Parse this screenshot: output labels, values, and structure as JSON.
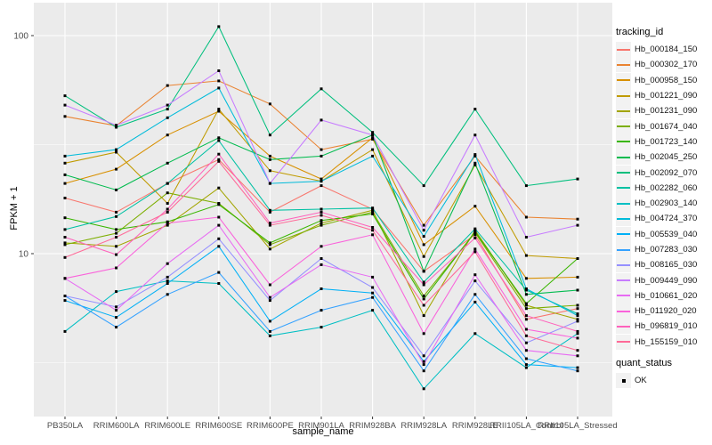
{
  "chart_data": {
    "type": "line",
    "title": "",
    "xlabel": "sample_name",
    "ylabel": "FPKM + 1",
    "y_scale": "log10",
    "y_range_approx": [
      1.8,
      140
    ],
    "y_ticks": [
      {
        "value": 100,
        "label": "100"
      },
      {
        "value": 10,
        "label": "10"
      }
    ],
    "grid": {
      "panel_bg": "#EBEBEB",
      "gridline_color": "#FFFFFF",
      "minor_breaks": [
        3.1623,
        31.623
      ]
    },
    "point_marker": {
      "shape": "square",
      "color": "#000000"
    },
    "categories": [
      "PB350LA",
      "RRIM600LA",
      "RRIM600LE",
      "RRIM600SE",
      "RRIM600PE",
      "RRIM901LA",
      "RRIM928BA",
      "RRIM928LA",
      "RRIM928LE",
      "RRII105LA_Control",
      "RRII105LA_Stressed"
    ],
    "series": [
      {
        "name": "Hb_000184_150",
        "color": "#F8766D",
        "values": [
          18,
          15.5,
          21,
          27,
          15.5,
          20.5,
          16,
          8.3,
          12.2,
          5.0,
          5.6
        ]
      },
      {
        "name": "Hb_000302_170",
        "color": "#EA8331",
        "values": [
          42.6,
          38.6,
          59,
          62,
          48.6,
          30,
          33.5,
          13.5,
          28,
          14.7,
          14.4
        ]
      },
      {
        "name": "Hb_000958_150",
        "color": "#D89000",
        "values": [
          21,
          24.4,
          35,
          45,
          28,
          22,
          34,
          11,
          16.5,
          7.7,
          7.8
        ]
      },
      {
        "name": "Hb_001221_090",
        "color": "#C09B00",
        "values": [
          26,
          29.2,
          17,
          46,
          24,
          21.5,
          30,
          9.7,
          25.5,
          9.8,
          9.5
        ]
      },
      {
        "name": "Hb_001231_090",
        "color": "#A3A500",
        "values": [
          11.2,
          10.8,
          13.5,
          20,
          10.5,
          13.8,
          15.8,
          5.2,
          12.8,
          5.8,
          5.0
        ]
      },
      {
        "name": "Hb_001674_040",
        "color": "#7CAE00",
        "values": [
          11.0,
          12.4,
          19,
          17,
          11,
          13.5,
          15.5,
          6.4,
          12.5,
          5.6,
          5.8
        ]
      },
      {
        "name": "Hb_001723_140",
        "color": "#39B600",
        "values": [
          14.6,
          12.9,
          14,
          16.8,
          11.2,
          14.2,
          15.2,
          6.2,
          12.6,
          5.9,
          9.5
        ]
      },
      {
        "name": "Hb_002045_250",
        "color": "#00BB4E",
        "values": [
          23,
          19.6,
          26,
          34,
          27,
          28,
          35,
          8.3,
          26,
          6.5,
          6.8
        ]
      },
      {
        "name": "Hb_002092_070",
        "color": "#00BF7D",
        "values": [
          53,
          38,
          46,
          110,
          35,
          57,
          36,
          20.5,
          46,
          20.5,
          22
        ]
      },
      {
        "name": "Hb_002282_060",
        "color": "#00C1A3",
        "values": [
          12.9,
          14.8,
          21,
          33,
          15.8,
          16,
          16.2,
          7.4,
          13,
          6.8,
          5.3
        ]
      },
      {
        "name": "Hb_002903_140",
        "color": "#00BFC4",
        "values": [
          4.4,
          6.7,
          7.5,
          7.3,
          4.2,
          4.6,
          5.5,
          2.4,
          4.3,
          3.0,
          4.3
        ]
      },
      {
        "name": "Hb_004724_370",
        "color": "#00BBDA",
        "values": [
          28,
          30,
          42,
          57.5,
          21,
          21.5,
          28,
          12,
          28.5,
          6.9,
          5.2
        ]
      },
      {
        "name": "Hb_005539_040",
        "color": "#00B0F6",
        "values": [
          6.1,
          5.1,
          7.3,
          10.8,
          4.9,
          6.9,
          6.6,
          3.2,
          6.0,
          3.1,
          3.0
        ]
      },
      {
        "name": "Hb_007283_030",
        "color": "#35A2FF",
        "values": [
          6.4,
          4.6,
          6.5,
          8.2,
          4.4,
          5.5,
          6.3,
          2.9,
          6.5,
          3.3,
          2.9
        ]
      },
      {
        "name": "Hb_008165_030",
        "color": "#9590FF",
        "values": [
          6.4,
          5.7,
          7.8,
          11.7,
          6.1,
          9.5,
          7.0,
          3.4,
          7.5,
          3.9,
          4.9
        ]
      },
      {
        "name": "Hb_009449_090",
        "color": "#C77CFF",
        "values": [
          48,
          38.8,
          48,
          69,
          21,
          41,
          35,
          12.8,
          35,
          11.9,
          13.5
        ]
      },
      {
        "name": "Hb_010661_020",
        "color": "#E76BF3",
        "values": [
          7.7,
          5.5,
          9.0,
          13.5,
          6.3,
          8.9,
          7.8,
          3.1,
          8.0,
          3.6,
          3.4
        ]
      },
      {
        "name": "Hb_011920_020",
        "color": "#FA62DB",
        "values": [
          7.7,
          8.6,
          13.8,
          14.7,
          7.2,
          10.8,
          12.2,
          4.3,
          10.5,
          4.5,
          4.1
        ]
      },
      {
        "name": "Hb_096819_010",
        "color": "#FF62BC",
        "values": [
          11.9,
          9.9,
          16,
          28.6,
          13.8,
          15.5,
          13.2,
          7.2,
          11.8,
          5.2,
          4.4
        ]
      },
      {
        "name": "Hb_155159_010",
        "color": "#FF6A98",
        "values": [
          9.6,
          11.9,
          15.5,
          26.5,
          13.5,
          15,
          12.8,
          5.8,
          10.2,
          4.2,
          3.6
        ]
      }
    ],
    "legend_position": "right"
  },
  "legend": {
    "tracking_title": "tracking_id",
    "quant_title": "quant_status",
    "quant_items": [
      {
        "label": "OK"
      }
    ]
  },
  "axis": {
    "text_color": "#4D4D4D",
    "tick_color": "#333333"
  }
}
